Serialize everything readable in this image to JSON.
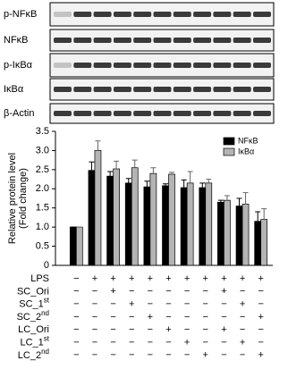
{
  "blots": {
    "rows": [
      {
        "label": "p-NFκB"
      },
      {
        "label": "NFκB"
      },
      {
        "label": "p-IκBα"
      },
      {
        "label": "IκBα"
      },
      {
        "label": "β-Actin"
      }
    ]
  },
  "chart_data": {
    "type": "bar",
    "y_label": [
      "Relative protein level",
      "(Fold change)"
    ],
    "categories": [
      null,
      null,
      null,
      null,
      null,
      null,
      null,
      null,
      null,
      null,
      null
    ],
    "series": [
      {
        "name": "NFκB",
        "color": "#000000",
        "values": [
          1.0,
          2.48,
          2.33,
          2.15,
          2.05,
          2.08,
          2.03,
          2.03,
          1.65,
          1.55,
          1.15
        ],
        "errors": [
          0,
          0.22,
          0.12,
          0.12,
          0.15,
          0.05,
          0.2,
          0.12,
          0.05,
          0.2,
          0.25
        ]
      },
      {
        "name": "IκBα",
        "color": "#b4b4b4",
        "values": [
          1.0,
          3.0,
          2.52,
          2.55,
          2.4,
          2.38,
          2.15,
          2.15,
          1.7,
          1.6,
          1.2
        ],
        "errors": [
          0,
          0.25,
          0.2,
          0.2,
          0.15,
          0.05,
          0.3,
          0.1,
          0.12,
          0.3,
          0.28
        ]
      }
    ],
    "ylim": [
      0,
      3.5
    ],
    "yticks": [
      {
        "value": 0,
        "label": "0"
      },
      {
        "value": 0.5,
        "label": "0.5"
      },
      {
        "value": 1,
        "label": "1.0"
      },
      {
        "value": 1.5,
        "label": "1.5"
      },
      {
        "value": 2,
        "label": "2.0"
      },
      {
        "value": 2.5,
        "label": "2.5"
      },
      {
        "value": 3,
        "label": "3.0"
      },
      {
        "value": 3.5,
        "label": "3.5"
      }
    ],
    "legend": "upper right"
  },
  "table": {
    "rows": [
      {
        "label": "LPS",
        "signs": [
          "−",
          "+",
          "+",
          "+",
          "+",
          "+",
          "+",
          "+",
          "+",
          "+",
          "+"
        ]
      },
      {
        "label": "SC_Ori",
        "signs": [
          "−",
          "−",
          "+",
          "−",
          "−",
          "−",
          "−",
          "−",
          "+",
          "−",
          "−"
        ]
      },
      {
        "label": "SC_1",
        "sup": "st",
        "signs": [
          "−",
          "−",
          "−",
          "+",
          "−",
          "−",
          "−",
          "−",
          "−",
          "+",
          "−"
        ]
      },
      {
        "label": "SC_2",
        "sup": "nd",
        "signs": [
          "−",
          "−",
          "−",
          "−",
          "+",
          "−",
          "−",
          "−",
          "−",
          "−",
          "+"
        ]
      },
      {
        "label": "LC_Ori",
        "signs": [
          "−",
          "−",
          "−",
          "−",
          "−",
          "+",
          "−",
          "−",
          "+",
          "−",
          "−"
        ]
      },
      {
        "label": "LC_1",
        "sup": "st",
        "signs": [
          "−",
          "−",
          "−",
          "−",
          "−",
          "−",
          "+",
          "−",
          "−",
          "+",
          "−"
        ]
      },
      {
        "label": "LC_2",
        "sup": "nd",
        "signs": [
          "−",
          "−",
          "−",
          "−",
          "−",
          "−",
          "−",
          "+",
          "−",
          "−",
          "+"
        ]
      }
    ]
  }
}
